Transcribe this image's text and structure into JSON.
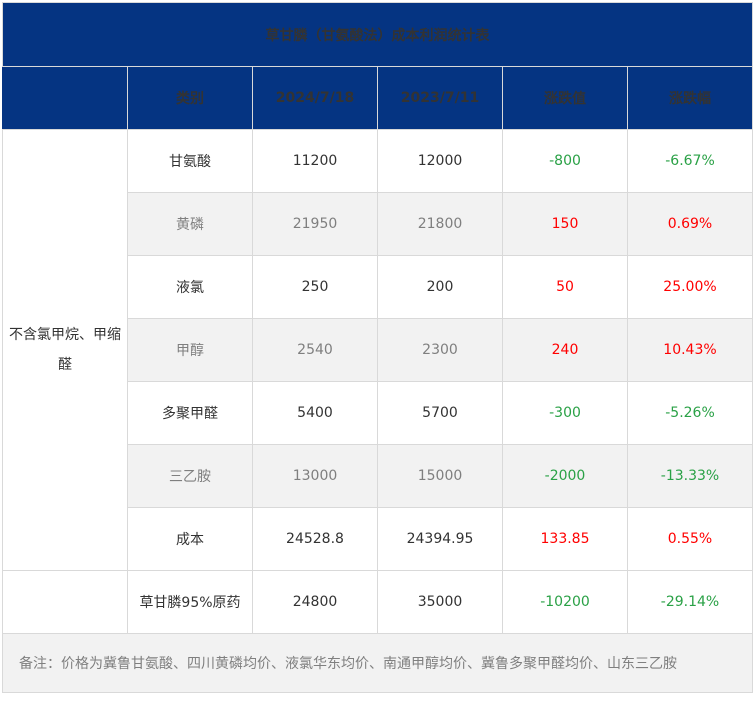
{
  "table": {
    "title": "草甘膦（甘氨酸法）成本利润统计表",
    "headers": [
      "",
      "类别",
      "2024/7/18",
      "2023/7/11",
      "涨跌值",
      "涨跌幅"
    ],
    "group_label": "不含氯甲烷、甲缩醛",
    "rows": [
      {
        "category": "甘氨酸",
        "v2024": "11200",
        "v2023": "12000",
        "change": "-800",
        "pct": "-6.67%"
      },
      {
        "category": "黄磷",
        "v2024": "21950",
        "v2023": "21800",
        "change": "150",
        "pct": "0.69%"
      },
      {
        "category": "液氯",
        "v2024": "250",
        "v2023": "200",
        "change": "50",
        "pct": "25.00%"
      },
      {
        "category": "甲醇",
        "v2024": "2540",
        "v2023": "2300",
        "change": "240",
        "pct": "10.43%"
      },
      {
        "category": "多聚甲醛",
        "v2024": "5400",
        "v2023": "5700",
        "change": "-300",
        "pct": "-5.26%"
      },
      {
        "category": "三乙胺",
        "v2024": "13000",
        "v2023": "15000",
        "change": "-2000",
        "pct": "-13.33%"
      },
      {
        "category": "成本",
        "v2024": "24528.8",
        "v2023": "24394.95",
        "change": "133.85",
        "pct": "0.55%"
      }
    ],
    "product_row": {
      "category": "草甘膦95%原药",
      "v2024": "24800",
      "v2023": "35000",
      "change": "-10200",
      "pct": "-29.14%"
    },
    "note": "备注：价格为冀鲁甘氨酸、四川黄磷均价、液氯华东均价、南通甲醇均价、冀鲁多聚甲醛均价、山东三乙胺"
  },
  "colors": {
    "header_bg": "#053482",
    "up": "#ff0000",
    "down": "#2aa146",
    "shade": "#f2f2f2"
  }
}
